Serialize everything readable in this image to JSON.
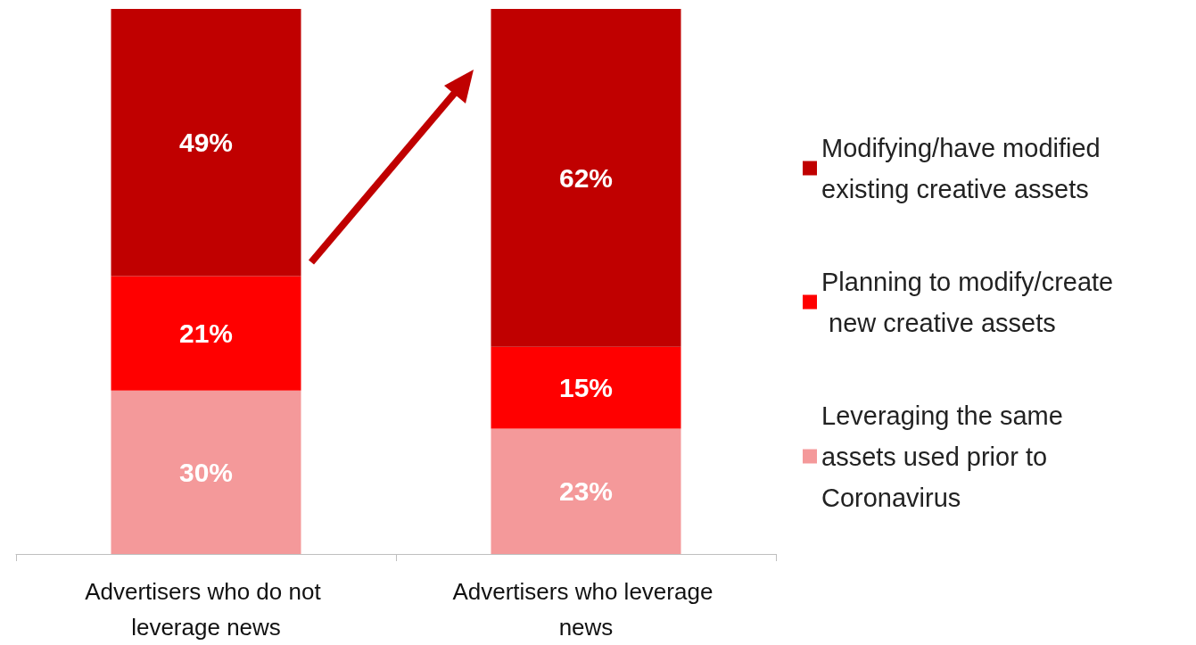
{
  "chart_data": {
    "type": "bar",
    "stacked": true,
    "legend": "right",
    "categories": [
      "Advertisers who do not leverage news",
      "Advertisers who leverage news"
    ],
    "series": [
      {
        "name": "Leveraging the same assets used prior to Coronavirus",
        "color": "#f4999a",
        "values": [
          30,
          23
        ],
        "value_labels": [
          "30%",
          "23%"
        ]
      },
      {
        "name": "Planning to modify/create new creative assets",
        "color": "#ff0000",
        "values": [
          21,
          15
        ],
        "value_labels": [
          "21%",
          "15%"
        ]
      },
      {
        "name": "Modifying/have modified existing creative assets",
        "color": "#c00000",
        "values": [
          49,
          62
        ],
        "value_labels": [
          "49%",
          "62%"
        ]
      }
    ]
  }
}
